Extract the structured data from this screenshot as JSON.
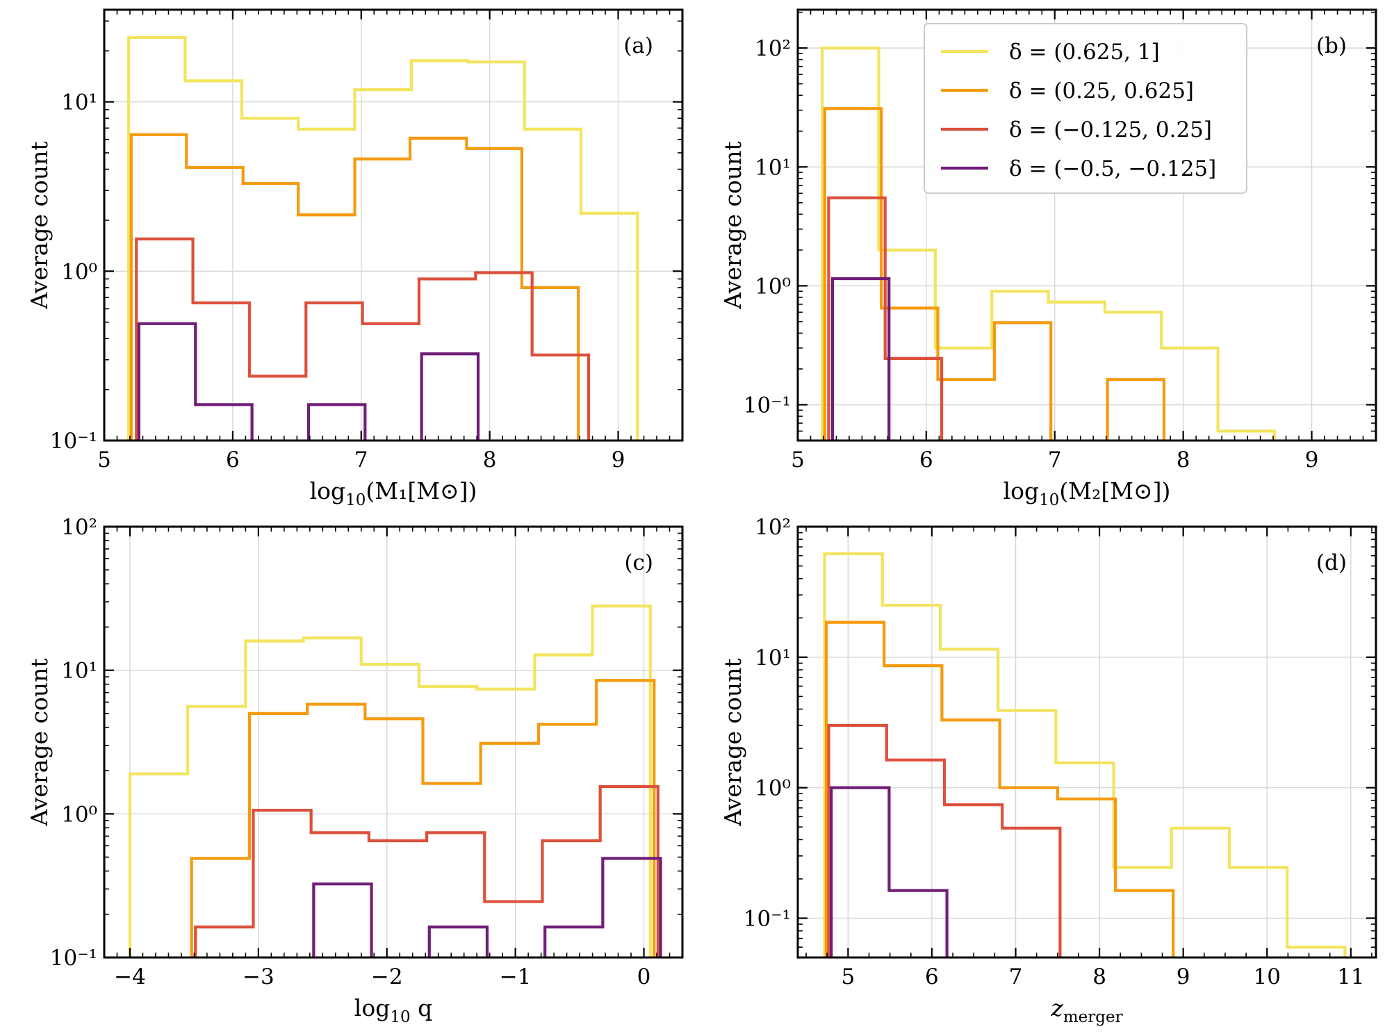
{
  "figure": {
    "y_axis_label": "Average count"
  },
  "colors": {
    "delta_hi": "#f2e45e",
    "delta_midhi": "#f59a0e",
    "delta_midlo": "#dc503c",
    "delta_lo": "#701e78"
  },
  "legend": {
    "placement": "upper-center of panel (b)",
    "entries": [
      {
        "label": "δ = (0.625, 1]",
        "color_key": "delta_hi"
      },
      {
        "label": "δ = (0.25, 0.625]",
        "color_key": "delta_midhi"
      },
      {
        "label": "δ = (−0.125, 0.25]",
        "color_key": "delta_midlo"
      },
      {
        "label": "δ = (−0.5, −0.125]",
        "color_key": "delta_lo"
      }
    ]
  },
  "chart_data": [
    {
      "id": "a",
      "tag": "(a)",
      "type": "histogram-step",
      "yscale": "log",
      "xlabel_main": "log",
      "xlabel_sub": "10",
      "xlabel_rest": "(M₁[M⊙])",
      "ylabel": "Average count",
      "xlim": [
        5.0,
        9.5
      ],
      "ylim": [
        0.1,
        35
      ],
      "xticks": [
        5,
        6,
        7,
        8,
        9
      ],
      "yticks": [
        {
          "v": 0.1,
          "label": "10⁻¹"
        },
        {
          "v": 1,
          "label": "10⁰"
        },
        {
          "v": 10,
          "label": "10¹"
        }
      ],
      "series": [
        {
          "name": "δ = (0.625, 1]",
          "color_key": "delta_hi",
          "edges": [
            5.19,
            5.63,
            6.07,
            6.51,
            6.95,
            7.39,
            7.83,
            8.27,
            8.71,
            9.15
          ],
          "values": [
            24,
            13.3,
            8.0,
            6.9,
            11.8,
            17.5,
            17.2,
            6.9,
            2.2
          ]
        },
        {
          "name": "δ = (0.25, 0.625]",
          "color_key": "delta_midhi",
          "edges": [
            5.21,
            5.64,
            6.08,
            6.51,
            6.95,
            7.38,
            7.82,
            8.25,
            8.69
          ],
          "values": [
            6.4,
            4.1,
            3.3,
            2.15,
            4.6,
            6.1,
            5.3,
            0.8
          ]
        },
        {
          "name": "δ = (−0.125, 0.25]",
          "color_key": "delta_midlo",
          "edges": [
            5.25,
            5.69,
            6.13,
            6.57,
            7.01,
            7.45,
            7.89,
            8.33,
            8.77
          ],
          "values": [
            1.55,
            0.65,
            0.24,
            0.65,
            0.49,
            0.9,
            0.98,
            0.32
          ]
        },
        {
          "name": "δ = (−0.5, −0.125]",
          "color_key": "delta_lo",
          "edges": [
            5.27,
            5.71,
            6.15,
            6.59,
            7.03,
            7.47,
            7.91
          ],
          "values": [
            0.49,
            0.163,
            null,
            0.163,
            null,
            0.325
          ]
        }
      ]
    },
    {
      "id": "b",
      "tag": "(b)",
      "type": "histogram-step",
      "yscale": "log",
      "xlabel_main": "log",
      "xlabel_sub": "10",
      "xlabel_rest": "(M₂[M⊙])",
      "ylabel": "Average count",
      "xlim": [
        5.0,
        9.5
      ],
      "ylim": [
        0.05,
        210
      ],
      "xticks": [
        5,
        6,
        7,
        8,
        9
      ],
      "yticks": [
        {
          "v": 0.1,
          "label": "10⁻¹"
        },
        {
          "v": 1,
          "label": "10⁰"
        },
        {
          "v": 10,
          "label": "10¹"
        },
        {
          "v": 100,
          "label": "10²"
        }
      ],
      "series": [
        {
          "name": "δ = (0.625, 1]",
          "color_key": "delta_hi",
          "edges": [
            5.19,
            5.63,
            6.07,
            6.51,
            6.95,
            7.39,
            7.83,
            8.27,
            8.71
          ],
          "values": [
            100,
            2.0,
            0.3,
            0.9,
            0.73,
            0.6,
            0.3,
            0.06
          ]
        },
        {
          "name": "δ = (0.25, 0.625]",
          "color_key": "delta_midhi",
          "edges": [
            5.21,
            5.65,
            6.09,
            6.53,
            6.97,
            7.41,
            7.85
          ],
          "values": [
            31,
            0.65,
            0.163,
            0.49,
            null,
            0.163
          ]
        },
        {
          "name": "δ = (−0.125, 0.25]",
          "color_key": "delta_midlo",
          "edges": [
            5.24,
            5.68,
            6.12
          ],
          "values": [
            5.5,
            0.245
          ]
        },
        {
          "name": "δ = (−0.5, −0.125]",
          "color_key": "delta_lo",
          "edges": [
            5.27,
            5.71
          ],
          "values": [
            1.15
          ]
        }
      ]
    },
    {
      "id": "c",
      "tag": "(c)",
      "type": "histogram-step",
      "yscale": "log",
      "xlabel_main": "log",
      "xlabel_sub": "10",
      "xlabel_rest": " q",
      "ylabel": "Average count",
      "xlim": [
        -4.2,
        0.3
      ],
      "ylim": [
        0.1,
        100
      ],
      "xticks": [
        -4,
        -3,
        -2,
        -1,
        0
      ],
      "xticklabels": [
        "−4",
        "−3",
        "−2",
        "−1",
        "0"
      ],
      "yticks": [
        {
          "v": 0.1,
          "label": "10⁻¹"
        },
        {
          "v": 1,
          "label": "10⁰"
        },
        {
          "v": 10,
          "label": "10¹"
        },
        {
          "v": 100,
          "label": "10²"
        }
      ],
      "series": [
        {
          "name": "δ = (0.625, 1]",
          "color_key": "delta_hi",
          "edges": [
            -4.0,
            -3.55,
            -3.1,
            -2.65,
            -2.2,
            -1.75,
            -1.3,
            -0.85,
            -0.4,
            0.05
          ],
          "values": [
            1.9,
            5.6,
            16,
            16.8,
            11,
            7.7,
            7.4,
            12.8,
            28
          ]
        },
        {
          "name": "δ = (0.25, 0.625]",
          "color_key": "delta_midhi",
          "edges": [
            -3.52,
            -3.07,
            -2.62,
            -2.17,
            -1.72,
            -1.27,
            -0.82,
            -0.37,
            0.08
          ],
          "values": [
            0.49,
            5.0,
            5.8,
            4.6,
            1.63,
            3.1,
            4.2,
            8.5
          ]
        },
        {
          "name": "δ = (−0.125, 0.25]",
          "color_key": "delta_midlo",
          "edges": [
            -3.49,
            -3.04,
            -2.59,
            -2.14,
            -1.69,
            -1.24,
            -0.79,
            -0.34,
            0.11
          ],
          "values": [
            0.163,
            1.06,
            0.74,
            0.65,
            0.74,
            0.245,
            0.65,
            1.55
          ]
        },
        {
          "name": "δ = (−0.5, −0.125]",
          "color_key": "delta_lo",
          "edges": [
            -2.57,
            -2.12,
            -1.67,
            -1.22,
            -0.77,
            -0.32,
            0.13
          ],
          "values": [
            0.325,
            null,
            0.163,
            null,
            0.163,
            0.49
          ]
        }
      ]
    },
    {
      "id": "d",
      "tag": "(d)",
      "type": "histogram-step",
      "yscale": "log",
      "xlabel_main": "z",
      "xlabel_sub": "merger",
      "xlabel_rest": "",
      "ylabel": "Average count",
      "xlim": [
        4.4,
        11.3
      ],
      "ylim": [
        0.05,
        100
      ],
      "xticks": [
        5,
        6,
        7,
        8,
        9,
        10,
        11
      ],
      "yticks": [
        {
          "v": 0.1,
          "label": "10⁻¹"
        },
        {
          "v": 1,
          "label": "10⁰"
        },
        {
          "v": 10,
          "label": "10¹"
        },
        {
          "v": 100,
          "label": "10²"
        }
      ],
      "series": [
        {
          "name": "δ = (0.625, 1]",
          "color_key": "delta_hi",
          "edges": [
            4.72,
            5.41,
            6.1,
            6.79,
            7.48,
            8.17,
            8.86,
            9.55,
            10.24,
            10.93
          ],
          "values": [
            62,
            25,
            11.5,
            3.9,
            1.55,
            0.245,
            0.49,
            0.245,
            0.06
          ]
        },
        {
          "name": "δ = (0.25, 0.625]",
          "color_key": "delta_midhi",
          "edges": [
            4.74,
            5.43,
            6.12,
            6.81,
            7.5,
            8.19,
            8.88
          ],
          "values": [
            18.5,
            8.6,
            3.3,
            1.0,
            0.82,
            0.163
          ]
        },
        {
          "name": "δ = (−0.125, 0.25]",
          "color_key": "delta_midlo",
          "edges": [
            4.77,
            5.46,
            6.15,
            6.84,
            7.53
          ],
          "values": [
            3.0,
            1.63,
            0.74,
            0.49
          ]
        },
        {
          "name": "δ = (−0.5, −0.125]",
          "color_key": "delta_lo",
          "edges": [
            4.8,
            5.49,
            6.18
          ],
          "values": [
            1.0,
            0.163
          ]
        }
      ]
    }
  ]
}
